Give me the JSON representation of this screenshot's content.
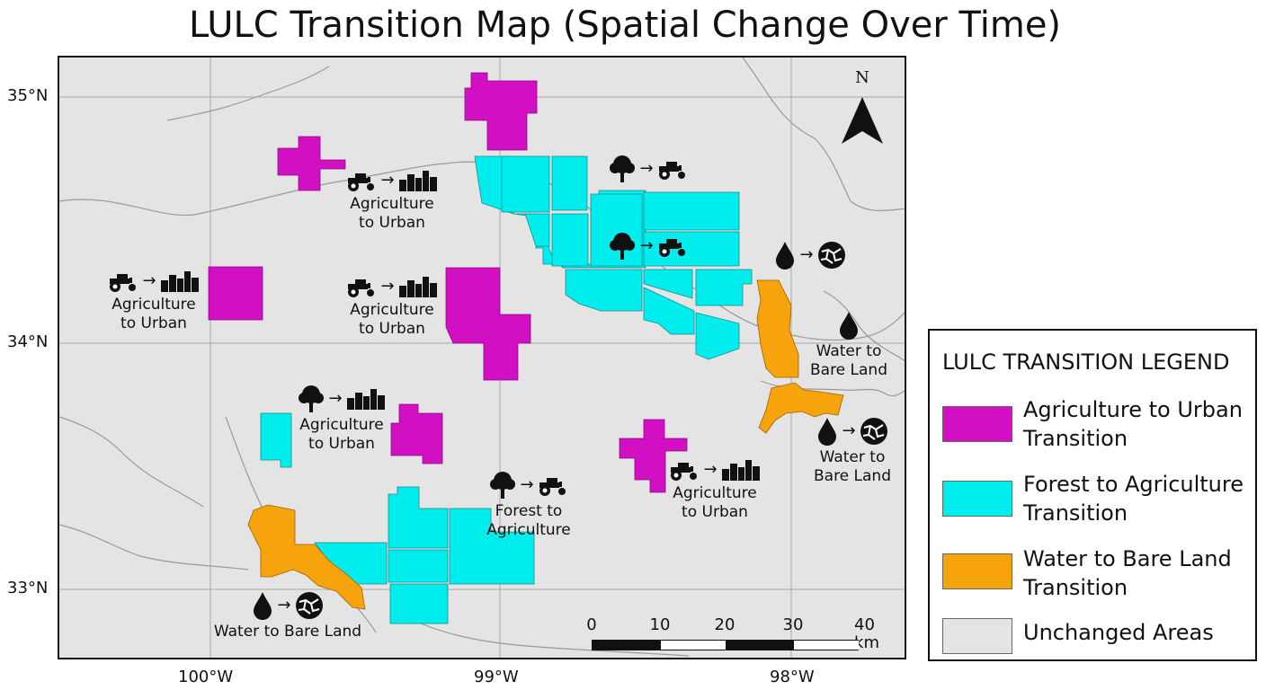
{
  "title": "LULC Transition Map (Spatial Change Over Time)",
  "colors": {
    "agriculture_to_urban": "#d30fc4",
    "forest_to_agriculture": "#00eded",
    "water_to_bare_land": "#f7a30c",
    "unchanged": "#e4e4e4"
  },
  "axes": {
    "lat_labels": [
      "35°N",
      "34°N",
      "33°N"
    ],
    "lon_labels": [
      "100°W",
      "99°W",
      "98°W"
    ]
  },
  "north_arrow": {
    "label": "N"
  },
  "scale_bar": {
    "ticks": [
      "0",
      "10",
      "20",
      "30",
      "40 km"
    ]
  },
  "annotations": [
    {
      "line1": "Agriculture",
      "line2": "to Urban",
      "from_icon": "tractor-icon",
      "to_icon": "city-icon"
    },
    {
      "line1": "Agriculture",
      "line2": "to Urban",
      "from_icon": "tractor-icon",
      "to_icon": "city-icon"
    },
    {
      "line1": "Agriculture",
      "line2": "to Urban",
      "from_icon": "tractor-icon",
      "to_icon": "city-icon"
    },
    {
      "line1": "Agriculture",
      "line2": "to Urban",
      "from_icon": "tree-icon",
      "to_icon": "city-icon"
    },
    {
      "line1": "Forest to",
      "line2": "Agriculture",
      "from_icon": "tree-icon",
      "to_icon": "tractor-icon"
    },
    {
      "line1": "Agriculture",
      "line2": "to Urban",
      "from_icon": "tractor-icon",
      "to_icon": "city-icon"
    },
    {
      "line1": "Water to",
      "line2": "Bare Land",
      "from_icon": "drop-icon",
      "to_icon": "cracked-soil-icon"
    },
    {
      "line1": "Water to",
      "line2": "Bare Land",
      "from_icon": "drop-icon",
      "to_icon": "cracked-soil-icon"
    },
    {
      "line1": "Water to Bare Land",
      "line2": "",
      "from_icon": "drop-icon",
      "to_icon": "cracked-soil-icon"
    }
  ],
  "legend": {
    "title": "LULC TRANSITION LEGEND",
    "items": [
      {
        "line1": "Agriculture to Urban",
        "line2": "Transition",
        "color": "#d30fc4"
      },
      {
        "line1": "Forest to Agriculture",
        "line2": "Transition",
        "color": "#00eded"
      },
      {
        "line1": "Water to Bare Land",
        "line2": "Transition",
        "color": "#f7a30c"
      },
      {
        "line1": "Unchanged Areas",
        "line2": "",
        "color": "#e4e4e4"
      }
    ]
  }
}
